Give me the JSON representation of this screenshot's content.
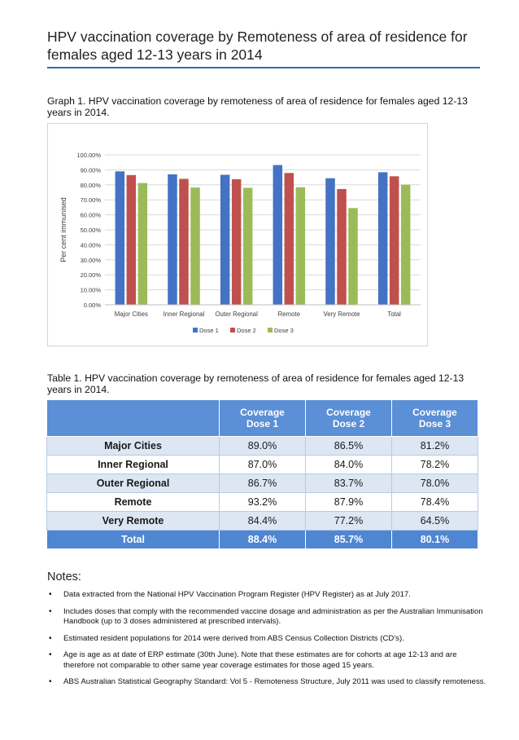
{
  "page": {
    "title": "HPV vaccination coverage by Remoteness of area of residence for females aged 12-13 years in 2014"
  },
  "graph": {
    "caption": "Graph 1. HPV vaccination coverage by remoteness of area of residence for females aged 12-13 years in 2014."
  },
  "chart_data": {
    "type": "bar",
    "title": "",
    "xlabel": "",
    "ylabel": "Per cent immunised",
    "ylim": [
      0,
      100
    ],
    "yticks": [
      "0.00%",
      "10.00%",
      "20.00%",
      "30.00%",
      "40.00%",
      "50.00%",
      "60.00%",
      "70.00%",
      "80.00%",
      "90.00%",
      "100.00%"
    ],
    "categories": [
      "Major Cities",
      "Inner Regional",
      "Outer Regional",
      "Remote",
      "Very Remote",
      "Total"
    ],
    "series": [
      {
        "name": "Dose 1",
        "color": "#4472c4",
        "values": [
          89.0,
          87.0,
          86.7,
          93.2,
          84.4,
          88.4
        ]
      },
      {
        "name": "Dose 2",
        "color": "#c0504d",
        "values": [
          86.5,
          84.0,
          83.7,
          87.9,
          77.2,
          85.7
        ]
      },
      {
        "name": "Dose 3",
        "color": "#9bbb59",
        "values": [
          81.2,
          78.2,
          78.0,
          78.4,
          64.5,
          80.1
        ]
      }
    ],
    "grid": true,
    "legend": "bottom"
  },
  "table": {
    "caption": "Table 1. HPV vaccination coverage by remoteness of area of residence for females aged 12-13 years in 2014.",
    "headers": [
      {
        "line1": "Coverage",
        "line2": "Dose 1"
      },
      {
        "line1": "Coverage",
        "line2": "Dose 2"
      },
      {
        "line1": "Coverage",
        "line2": "Dose 3"
      }
    ],
    "rows": [
      {
        "label": "Major Cities",
        "d1": "89.0%",
        "d2": "86.5%",
        "d3": "81.2%"
      },
      {
        "label": "Inner Regional",
        "d1": "87.0%",
        "d2": "84.0%",
        "d3": "78.2%"
      },
      {
        "label": "Outer Regional",
        "d1": "86.7%",
        "d2": "83.7%",
        "d3": "78.0%"
      },
      {
        "label": "Remote",
        "d1": "93.2%",
        "d2": "87.9%",
        "d3": "78.4%"
      },
      {
        "label": "Very Remote",
        "d1": "84.4%",
        "d2": "77.2%",
        "d3": "64.5%"
      }
    ],
    "total": {
      "label": "Total",
      "d1": "88.4%",
      "d2": "85.7%",
      "d3": "80.1%"
    }
  },
  "notes": {
    "heading": "Notes:",
    "items": [
      "Data extracted from the National HPV Vaccination Program Register (HPV Register) as at July 2017.",
      "Includes doses that comply with the recommended vaccine dosage and administration as per the Australian Immunisation Handbook (up to 3 doses administered at prescribed intervals).",
      "Estimated resident populations for 2014 were derived from ABS Census Collection Districts (CD's).",
      "Age is age as at date of ERP estimate (30th June).  Note that these estimates are for cohorts at age 12-13 and are therefore not comparable to other same year coverage estimates for those aged 15 years.",
      "ABS Australian Statistical Geography Standard: Vol 5 - Remoteness Structure, July 2011 was used to classify remoteness."
    ]
  }
}
